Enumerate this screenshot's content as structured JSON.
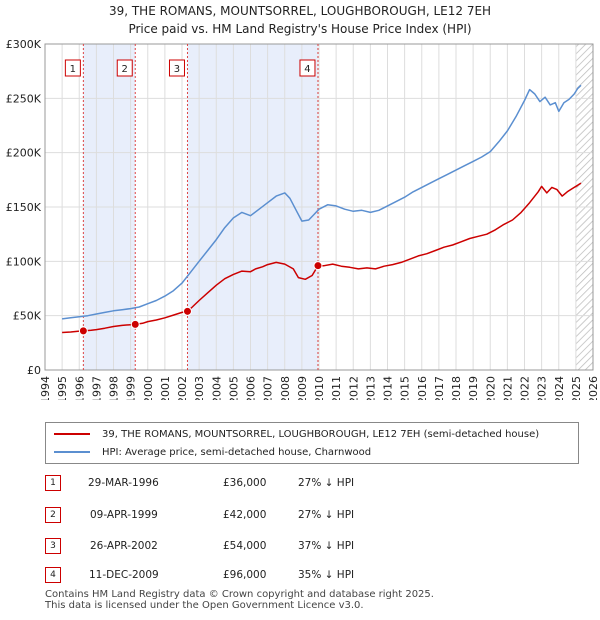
{
  "header": {
    "title_line1": "39, THE ROMANS, MOUNTSORREL, LOUGHBOROUGH, LE12 7EH",
    "title_line2": "Price paid vs. HM Land Registry's House Price Index (HPI)"
  },
  "chart_data": {
    "type": "line",
    "x_range": [
      1994,
      2026
    ],
    "x_ticks": [
      "1994",
      "1995",
      "1996",
      "1997",
      "1998",
      "1999",
      "2000",
      "2001",
      "2002",
      "2003",
      "2004",
      "2005",
      "2006",
      "2007",
      "2008",
      "2009",
      "2010",
      "2011",
      "2012",
      "2013",
      "2014",
      "2015",
      "2016",
      "2017",
      "2018",
      "2019",
      "2020",
      "2021",
      "2022",
      "2023",
      "2024",
      "2025",
      "2026"
    ],
    "y_range": [
      0,
      300000
    ],
    "y_ticks": [
      {
        "value": 0,
        "label": "£0"
      },
      {
        "value": 50000,
        "label": "£50K"
      },
      {
        "value": 100000,
        "label": "£100K"
      },
      {
        "value": 150000,
        "label": "£150K"
      },
      {
        "value": 200000,
        "label": "£200K"
      },
      {
        "value": 250000,
        "label": "£250K"
      },
      {
        "value": 300000,
        "label": "£300K"
      }
    ],
    "grid": true,
    "shaded_spans": [
      [
        1996.24,
        1999.27
      ],
      [
        2002.32,
        2009.94
      ]
    ],
    "hatched_after": 2025.0,
    "series": [
      {
        "name": "39, THE ROMANS, MOUNTSORREL, LOUGHBOROUGH, LE12 7EH (semi-detached house)",
        "color": "#cc0000",
        "points": [
          [
            1995.0,
            34500
          ],
          [
            1995.5,
            35000
          ],
          [
            1996.0,
            35800
          ],
          [
            1996.24,
            36000
          ],
          [
            1996.7,
            36500
          ],
          [
            1997.0,
            37200
          ],
          [
            1997.5,
            38500
          ],
          [
            1998.0,
            40000
          ],
          [
            1998.5,
            41000
          ],
          [
            1999.0,
            41700
          ],
          [
            1999.27,
            42000
          ],
          [
            1999.7,
            43000
          ],
          [
            2000.0,
            44500
          ],
          [
            2000.5,
            46000
          ],
          [
            2001.0,
            48000
          ],
          [
            2001.5,
            50500
          ],
          [
            2002.0,
            53000
          ],
          [
            2002.32,
            54000
          ],
          [
            2002.6,
            58000
          ],
          [
            2003.0,
            64000
          ],
          [
            2003.5,
            71000
          ],
          [
            2004.0,
            78000
          ],
          [
            2004.5,
            84000
          ],
          [
            2005.0,
            88000
          ],
          [
            2005.5,
            91000
          ],
          [
            2006.0,
            90500
          ],
          [
            2006.3,
            93000
          ],
          [
            2006.7,
            95000
          ],
          [
            2007.0,
            97000
          ],
          [
            2007.5,
            99000
          ],
          [
            2008.0,
            97500
          ],
          [
            2008.5,
            93000
          ],
          [
            2008.8,
            85000
          ],
          [
            2009.2,
            83500
          ],
          [
            2009.6,
            87000
          ],
          [
            2009.94,
            96000
          ],
          [
            2010.3,
            96000
          ],
          [
            2010.8,
            97500
          ],
          [
            2011.3,
            95500
          ],
          [
            2011.8,
            94500
          ],
          [
            2012.3,
            93000
          ],
          [
            2012.8,
            94000
          ],
          [
            2013.3,
            93000
          ],
          [
            2013.8,
            95500
          ],
          [
            2014.3,
            97000
          ],
          [
            2014.8,
            99000
          ],
          [
            2015.3,
            102000
          ],
          [
            2015.8,
            105000
          ],
          [
            2016.3,
            107000
          ],
          [
            2016.8,
            110000
          ],
          [
            2017.3,
            113000
          ],
          [
            2017.8,
            115000
          ],
          [
            2018.3,
            118000
          ],
          [
            2018.8,
            121000
          ],
          [
            2019.3,
            123000
          ],
          [
            2019.8,
            125000
          ],
          [
            2020.3,
            129000
          ],
          [
            2020.8,
            134000
          ],
          [
            2021.3,
            138000
          ],
          [
            2021.8,
            145000
          ],
          [
            2022.3,
            154000
          ],
          [
            2022.8,
            164000
          ],
          [
            2023.0,
            169000
          ],
          [
            2023.3,
            163000
          ],
          [
            2023.6,
            168000
          ],
          [
            2023.9,
            166000
          ],
          [
            2024.2,
            160000
          ],
          [
            2024.5,
            164000
          ],
          [
            2024.8,
            167000
          ],
          [
            2025.1,
            170000
          ],
          [
            2025.3,
            172000
          ]
        ]
      },
      {
        "name": "HPI: Average price, semi-detached house, Charnwood",
        "color": "#5b8fd0",
        "points": [
          [
            1995.0,
            47000
          ],
          [
            1995.5,
            48000
          ],
          [
            1996.0,
            49000
          ],
          [
            1996.5,
            50000
          ],
          [
            1997.0,
            51500
          ],
          [
            1997.5,
            53000
          ],
          [
            1998.0,
            54500
          ],
          [
            1998.5,
            55500
          ],
          [
            1999.0,
            56500
          ],
          [
            1999.5,
            58000
          ],
          [
            2000.0,
            61000
          ],
          [
            2000.5,
            64000
          ],
          [
            2001.0,
            68000
          ],
          [
            2001.5,
            73000
          ],
          [
            2002.0,
            80000
          ],
          [
            2002.5,
            90000
          ],
          [
            2003.0,
            100000
          ],
          [
            2003.5,
            110000
          ],
          [
            2004.0,
            120000
          ],
          [
            2004.5,
            131000
          ],
          [
            2005.0,
            140000
          ],
          [
            2005.5,
            145000
          ],
          [
            2006.0,
            142000
          ],
          [
            2006.5,
            148000
          ],
          [
            2007.0,
            154000
          ],
          [
            2007.5,
            160000
          ],
          [
            2008.0,
            163000
          ],
          [
            2008.3,
            158000
          ],
          [
            2008.7,
            146000
          ],
          [
            2009.0,
            137000
          ],
          [
            2009.4,
            138000
          ],
          [
            2009.7,
            143000
          ],
          [
            2010.0,
            148000
          ],
          [
            2010.5,
            152000
          ],
          [
            2011.0,
            151000
          ],
          [
            2011.5,
            148000
          ],
          [
            2012.0,
            146000
          ],
          [
            2012.5,
            147000
          ],
          [
            2013.0,
            145000
          ],
          [
            2013.5,
            147000
          ],
          [
            2014.0,
            151000
          ],
          [
            2014.5,
            155000
          ],
          [
            2015.0,
            159000
          ],
          [
            2015.5,
            164000
          ],
          [
            2016.0,
            168000
          ],
          [
            2016.5,
            172000
          ],
          [
            2017.0,
            176000
          ],
          [
            2017.5,
            180000
          ],
          [
            2018.0,
            184000
          ],
          [
            2018.5,
            188000
          ],
          [
            2019.0,
            192000
          ],
          [
            2019.5,
            196000
          ],
          [
            2020.0,
            201000
          ],
          [
            2020.5,
            210000
          ],
          [
            2021.0,
            220000
          ],
          [
            2021.5,
            233000
          ],
          [
            2022.0,
            248000
          ],
          [
            2022.3,
            258000
          ],
          [
            2022.6,
            254000
          ],
          [
            2022.9,
            247000
          ],
          [
            2023.2,
            251000
          ],
          [
            2023.5,
            244000
          ],
          [
            2023.8,
            246000
          ],
          [
            2024.0,
            238000
          ],
          [
            2024.3,
            246000
          ],
          [
            2024.6,
            249000
          ],
          [
            2024.9,
            254000
          ],
          [
            2025.1,
            259000
          ],
          [
            2025.3,
            262000
          ]
        ]
      }
    ],
    "markers": [
      {
        "label": "1",
        "x": 1996.24,
        "y": 36000
      },
      {
        "label": "2",
        "x": 1999.27,
        "y": 42000
      },
      {
        "label": "3",
        "x": 2002.32,
        "y": 54000
      },
      {
        "label": "4",
        "x": 2009.94,
        "y": 96000
      }
    ]
  },
  "legend": {
    "property_label": "39, THE ROMANS, MOUNTSORREL, LOUGHBOROUGH, LE12 7EH (semi-detached house)",
    "hpi_label": "HPI: Average price, semi-detached house, Charnwood"
  },
  "transactions": [
    {
      "num": "1",
      "date": "29-MAR-1996",
      "price": "£36,000",
      "delta": "27% ↓ HPI"
    },
    {
      "num": "2",
      "date": "09-APR-1999",
      "price": "£42,000",
      "delta": "27% ↓ HPI"
    },
    {
      "num": "3",
      "date": "26-APR-2002",
      "price": "£54,000",
      "delta": "37% ↓ HPI"
    },
    {
      "num": "4",
      "date": "11-DEC-2009",
      "price": "£96,000",
      "delta": "35% ↓ HPI"
    }
  ],
  "footer": {
    "line1": "Contains HM Land Registry data © Crown copyright and database right 2025.",
    "line2": "This data is licensed under the Open Government Licence v3.0."
  }
}
